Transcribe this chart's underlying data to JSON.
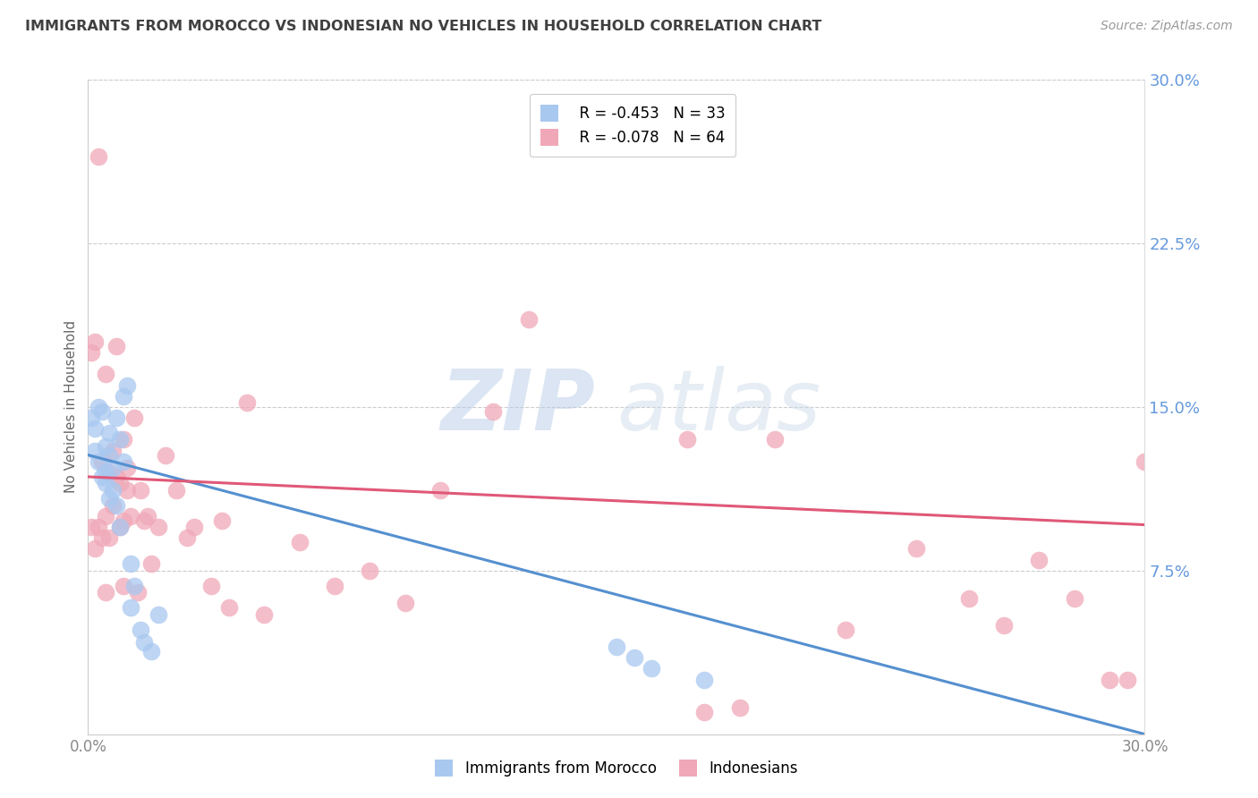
{
  "title": "IMMIGRANTS FROM MOROCCO VS INDONESIAN NO VEHICLES IN HOUSEHOLD CORRELATION CHART",
  "source": "Source: ZipAtlas.com",
  "ylabel": "No Vehicles in Household",
  "right_yticks": [
    0.0,
    0.075,
    0.15,
    0.225,
    0.3
  ],
  "right_yticklabels": [
    "",
    "7.5%",
    "15.0%",
    "22.5%",
    "30.0%"
  ],
  "xlim": [
    0.0,
    0.3
  ],
  "ylim": [
    0.0,
    0.3
  ],
  "watermark_zip": "ZIP",
  "watermark_atlas": "atlas",
  "legend_blue_r": "R = -0.453",
  "legend_blue_n": "N = 33",
  "legend_pink_r": "R = -0.078",
  "legend_pink_n": "N = 64",
  "blue_color": "#a8c8f0",
  "pink_color": "#f0a8b8",
  "blue_line_color": "#5590d0",
  "pink_line_color": "#e05878",
  "grid_color": "#cccccc",
  "title_color": "#404040",
  "right_axis_color": "#6699dd",
  "source_color": "#999999",
  "blue_points_x": [
    0.001,
    0.002,
    0.002,
    0.003,
    0.003,
    0.004,
    0.004,
    0.005,
    0.005,
    0.005,
    0.006,
    0.006,
    0.006,
    0.007,
    0.007,
    0.008,
    0.008,
    0.009,
    0.009,
    0.01,
    0.01,
    0.011,
    0.012,
    0.012,
    0.013,
    0.015,
    0.016,
    0.018,
    0.02,
    0.15,
    0.155,
    0.16,
    0.175
  ],
  "blue_points_y": [
    0.145,
    0.14,
    0.13,
    0.15,
    0.125,
    0.148,
    0.118,
    0.132,
    0.12,
    0.115,
    0.138,
    0.128,
    0.108,
    0.122,
    0.112,
    0.145,
    0.105,
    0.135,
    0.095,
    0.125,
    0.155,
    0.16,
    0.078,
    0.058,
    0.068,
    0.048,
    0.042,
    0.038,
    0.055,
    0.04,
    0.035,
    0.03,
    0.025
  ],
  "pink_points_x": [
    0.001,
    0.001,
    0.002,
    0.002,
    0.003,
    0.003,
    0.004,
    0.004,
    0.005,
    0.005,
    0.006,
    0.006,
    0.007,
    0.007,
    0.008,
    0.008,
    0.009,
    0.009,
    0.01,
    0.01,
    0.011,
    0.011,
    0.012,
    0.013,
    0.014,
    0.015,
    0.016,
    0.017,
    0.018,
    0.02,
    0.022,
    0.025,
    0.028,
    0.03,
    0.035,
    0.038,
    0.04,
    0.045,
    0.05,
    0.06,
    0.07,
    0.08,
    0.09,
    0.1,
    0.115,
    0.125,
    0.14,
    0.15,
    0.165,
    0.17,
    0.175,
    0.185,
    0.195,
    0.215,
    0.235,
    0.25,
    0.26,
    0.27,
    0.28,
    0.29,
    0.295,
    0.3,
    0.005,
    0.01
  ],
  "pink_points_y": [
    0.175,
    0.095,
    0.18,
    0.085,
    0.265,
    0.095,
    0.125,
    0.09,
    0.165,
    0.1,
    0.12,
    0.09,
    0.13,
    0.105,
    0.178,
    0.118,
    0.095,
    0.115,
    0.135,
    0.098,
    0.112,
    0.122,
    0.1,
    0.145,
    0.065,
    0.112,
    0.098,
    0.1,
    0.078,
    0.095,
    0.128,
    0.112,
    0.09,
    0.095,
    0.068,
    0.098,
    0.058,
    0.152,
    0.055,
    0.088,
    0.068,
    0.075,
    0.06,
    0.112,
    0.148,
    0.19,
    0.27,
    0.27,
    0.272,
    0.135,
    0.01,
    0.012,
    0.135,
    0.048,
    0.085,
    0.062,
    0.05,
    0.08,
    0.062,
    0.025,
    0.025,
    0.125,
    0.065,
    0.068
  ],
  "blue_line_x0": 0.0,
  "blue_line_y0": 0.128,
  "blue_line_x1": 0.3,
  "blue_line_y1": 0.0,
  "pink_line_x0": 0.0,
  "pink_line_y0": 0.118,
  "pink_line_x1": 0.3,
  "pink_line_y1": 0.096
}
